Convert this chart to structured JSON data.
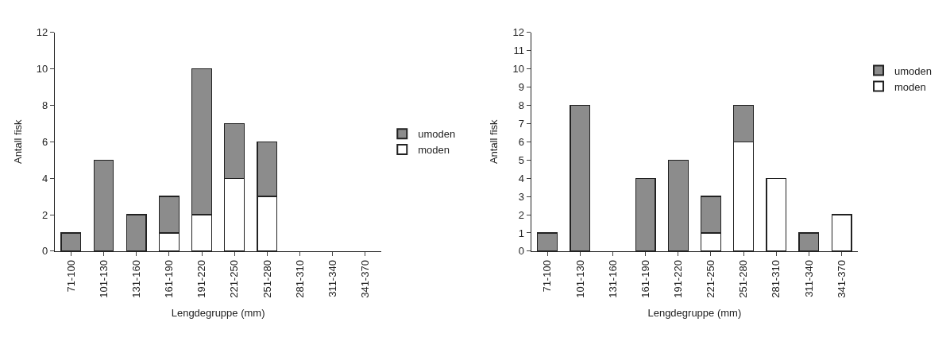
{
  "chart_data": [
    {
      "type": "bar",
      "stacked": true,
      "xlabel": "Lengdegruppe (mm)",
      "ylabel": "Antall fisk",
      "categories": [
        "71-100",
        "101-130",
        "131-160",
        "161-190",
        "191-220",
        "221-250",
        "251-280",
        "281-310",
        "311-340",
        "341-370"
      ],
      "ylim": [
        0,
        12
      ],
      "yticks": [
        0,
        2,
        4,
        6,
        8,
        10,
        12
      ],
      "legend": "right",
      "series": [
        {
          "name": "moden",
          "color": "#ffffff",
          "values": [
            0,
            0,
            0,
            1,
            2,
            4,
            3,
            0,
            0,
            0
          ]
        },
        {
          "name": "umoden",
          "color": "#8c8c8c",
          "values": [
            1,
            5,
            2,
            2,
            8,
            3,
            3,
            0,
            0,
            0
          ]
        }
      ]
    },
    {
      "type": "bar",
      "stacked": true,
      "xlabel": "Lengdegruppe (mm)",
      "ylabel": "Antall fisk",
      "categories": [
        "71-100",
        "101-130",
        "131-160",
        "161-190",
        "191-220",
        "221-250",
        "251-280",
        "281-310",
        "311-340",
        "341-370"
      ],
      "ylim": [
        0,
        12
      ],
      "yticks": [
        0,
        1,
        2,
        3,
        4,
        5,
        6,
        7,
        8,
        9,
        10,
        11,
        12
      ],
      "legend": "top right",
      "series": [
        {
          "name": "moden",
          "color": "#ffffff",
          "values": [
            0,
            0,
            0,
            0,
            0,
            1,
            6,
            4,
            0,
            2
          ]
        },
        {
          "name": "umoden",
          "color": "#8c8c8c",
          "values": [
            1,
            8,
            0,
            4,
            5,
            2,
            2,
            0,
            1,
            0
          ]
        }
      ]
    }
  ]
}
